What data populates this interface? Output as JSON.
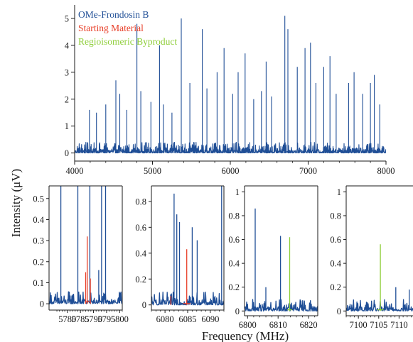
{
  "colors": {
    "product": "#1f4e96",
    "starting_material": "#e8402a",
    "byproduct": "#8fce3a",
    "axis": "#1a1a1a"
  },
  "figure": {
    "ylabel": "Intensity (μV)",
    "xlabel": "Frequency (MHz)"
  },
  "chart_data": [
    {
      "id": "overview",
      "type": "line",
      "xlim": [
        4000,
        8000
      ],
      "ylim": [
        -0.3,
        5.5
      ],
      "xticks": [
        4000,
        5000,
        6000,
        7000,
        8000
      ],
      "yticks": [
        0,
        1,
        2,
        3,
        4,
        5
      ],
      "legend": {
        "placement": "top-left",
        "entries": [
          {
            "label": "OMe-Frondosin B",
            "color": "#1f4e96"
          },
          {
            "label": "Starting Material",
            "color": "#e8402a"
          },
          {
            "label": "Regioisomeric Byproduct",
            "color": "#8fce3a"
          }
        ]
      },
      "series": [
        {
          "name": "OMe-Frondosin B",
          "color": "#1f4e96",
          "noise_level": 0.4,
          "peaks": [
            {
              "x": 4190,
              "y": 1.6
            },
            {
              "x": 4280,
              "y": 1.5
            },
            {
              "x": 4400,
              "y": 1.8
            },
            {
              "x": 4530,
              "y": 2.7
            },
            {
              "x": 4580,
              "y": 2.2
            },
            {
              "x": 4670,
              "y": 1.6
            },
            {
              "x": 4800,
              "y": 4.8
            },
            {
              "x": 4850,
              "y": 2.3
            },
            {
              "x": 4980,
              "y": 1.9
            },
            {
              "x": 5090,
              "y": 4.0
            },
            {
              "x": 5140,
              "y": 1.8
            },
            {
              "x": 5250,
              "y": 1.5
            },
            {
              "x": 5370,
              "y": 5.0
            },
            {
              "x": 5480,
              "y": 2.6
            },
            {
              "x": 5640,
              "y": 4.6
            },
            {
              "x": 5700,
              "y": 2.4
            },
            {
              "x": 5830,
              "y": 3.0
            },
            {
              "x": 5920,
              "y": 3.9
            },
            {
              "x": 6030,
              "y": 2.2
            },
            {
              "x": 6100,
              "y": 3.0
            },
            {
              "x": 6190,
              "y": 3.7
            },
            {
              "x": 6300,
              "y": 2.0
            },
            {
              "x": 6400,
              "y": 2.3
            },
            {
              "x": 6460,
              "y": 3.4
            },
            {
              "x": 6530,
              "y": 2.1
            },
            {
              "x": 6700,
              "y": 5.1
            },
            {
              "x": 6740,
              "y": 4.6
            },
            {
              "x": 6860,
              "y": 3.2
            },
            {
              "x": 6960,
              "y": 3.9
            },
            {
              "x": 7030,
              "y": 4.1
            },
            {
              "x": 7100,
              "y": 2.6
            },
            {
              "x": 7200,
              "y": 3.2
            },
            {
              "x": 7280,
              "y": 3.6
            },
            {
              "x": 7360,
              "y": 2.2
            },
            {
              "x": 7520,
              "y": 2.6
            },
            {
              "x": 7590,
              "y": 3.0
            },
            {
              "x": 7700,
              "y": 2.2
            },
            {
              "x": 7800,
              "y": 2.6
            },
            {
              "x": 7850,
              "y": 2.9
            },
            {
              "x": 7920,
              "y": 1.8
            }
          ]
        }
      ]
    },
    {
      "id": "inset-5780",
      "type": "line",
      "xlim": [
        5773,
        5801
      ],
      "ylim": [
        -0.03,
        0.56
      ],
      "xticks": [
        5780,
        5785,
        5790,
        5795,
        5800
      ],
      "yticks": [
        0,
        0.1,
        0.2,
        0.3,
        0.4,
        0.5
      ],
      "series": [
        {
          "name": "OMe-Frondosin B",
          "color": "#1f4e96",
          "noise_level": 0.06,
          "peaks": [
            {
              "x": 5777.5,
              "y": 0.6
            },
            {
              "x": 5784.0,
              "y": 0.6
            },
            {
              "x": 5788.6,
              "y": 0.6
            },
            {
              "x": 5793.1,
              "y": 0.6
            },
            {
              "x": 5794.6,
              "y": 0.6
            },
            {
              "x": 5792.0,
              "y": 0.16
            }
          ]
        },
        {
          "name": "Starting Material",
          "color": "#e8402a",
          "noise_level": 0,
          "peaks": [
            {
              "x": 5787.6,
              "y": 0.32
            },
            {
              "x": 5787.0,
              "y": 0.15
            },
            {
              "x": 5788.8,
              "y": 0.12
            }
          ]
        }
      ]
    },
    {
      "id": "inset-6085",
      "type": "line",
      "xlim": [
        6077,
        6093
      ],
      "ylim": [
        -0.04,
        0.92
      ],
      "xticks": [
        6080,
        6085,
        6090
      ],
      "yticks": [
        0,
        0.2,
        0.4,
        0.6,
        0.8
      ],
      "series": [
        {
          "name": "OMe-Frondosin B",
          "color": "#1f4e96",
          "noise_level": 0.1,
          "peaks": [
            {
              "x": 6082.0,
              "y": 0.86
            },
            {
              "x": 6082.6,
              "y": 0.7
            },
            {
              "x": 6083.2,
              "y": 0.64
            },
            {
              "x": 6086.0,
              "y": 0.6
            },
            {
              "x": 6087.1,
              "y": 0.5
            },
            {
              "x": 6092.5,
              "y": 0.95
            }
          ]
        },
        {
          "name": "Starting Material",
          "color": "#e8402a",
          "noise_level": 0,
          "peaks": [
            {
              "x": 6084.8,
              "y": 0.43
            },
            {
              "x": 6081.3,
              "y": 0.07
            }
          ]
        }
      ]
    },
    {
      "id": "inset-6810",
      "type": "line",
      "xlim": [
        6799,
        6823
      ],
      "ylim": [
        -0.04,
        1.05
      ],
      "xticks": [
        6800,
        6810,
        6820
      ],
      "yticks": [
        0,
        0.2,
        0.4,
        0.6,
        0.8,
        1
      ],
      "series": [
        {
          "name": "OMe-Frondosin B",
          "color": "#1f4e96",
          "noise_level": 0.1,
          "peaks": [
            {
              "x": 6802.5,
              "y": 0.86
            },
            {
              "x": 6810.8,
              "y": 0.63
            },
            {
              "x": 6806.0,
              "y": 0.2
            }
          ]
        },
        {
          "name": "Regioisomeric Byproduct",
          "color": "#8fce3a",
          "noise_level": 0,
          "peaks": [
            {
              "x": 6813.8,
              "y": 0.62
            }
          ]
        }
      ]
    },
    {
      "id": "inset-7105",
      "type": "line",
      "xlim": [
        7097,
        7115
      ],
      "ylim": [
        -0.04,
        1.05
      ],
      "xticks": [
        7100,
        7105,
        7110
      ],
      "yticks": [
        0,
        0.2,
        0.4,
        0.6,
        0.8,
        1
      ],
      "series": [
        {
          "name": "OMe-Frondosin B",
          "color": "#1f4e96",
          "noise_level": 0.1,
          "peaks": [
            {
              "x": 7109.2,
              "y": 0.2
            },
            {
              "x": 7112.5,
              "y": 0.18
            }
          ]
        },
        {
          "name": "Regioisomeric Byproduct",
          "color": "#8fce3a",
          "noise_level": 0,
          "peaks": [
            {
              "x": 7105.4,
              "y": 0.56
            }
          ]
        }
      ]
    }
  ]
}
